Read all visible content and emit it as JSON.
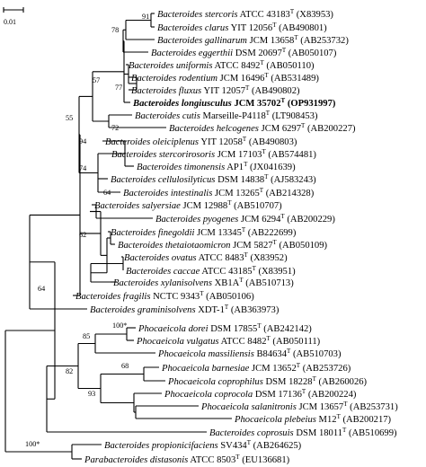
{
  "scale_bar": {
    "label": "0.01"
  },
  "taxa": [
    {
      "id": "t1",
      "genus": "Bacteroides",
      "species": "stercoris",
      "strain": "ATCC 43183",
      "acc": "(X83953)"
    },
    {
      "id": "t2",
      "genus": "Bacteroides",
      "species": "clarus",
      "strain": "YIT 12056",
      "acc": "(AB490801)"
    },
    {
      "id": "t3",
      "genus": "Bacteroides",
      "species": "gallinarum",
      "strain": "JCM 13658",
      "acc": "(AB253732)"
    },
    {
      "id": "t4",
      "genus": "Bacteroides",
      "species": "eggerthii",
      "strain": "DSM 20697",
      "acc": "(AB050107)"
    },
    {
      "id": "t5",
      "genus": "Bacteroides",
      "species": "uniformis",
      "strain": "ATCC 8492",
      "acc": "(AB050110)"
    },
    {
      "id": "t6",
      "genus": "Bacteroides",
      "species": "rodentium",
      "strain": "JCM 16496",
      "acc": "(AB531489)"
    },
    {
      "id": "t7",
      "genus": "Bacteroides",
      "species": "fluxus",
      "strain": "YIT 12057",
      "acc": "(AB490802)"
    },
    {
      "id": "t8",
      "genus": "Bacteroides",
      "species": "longiusculus",
      "strain": "JCM 35702",
      "acc": "(OP931997)",
      "bold": true
    },
    {
      "id": "t9",
      "genus": "Bacteroides",
      "species": "cutis",
      "strain": "Marseille-P4118",
      "acc": "(LT908453)"
    },
    {
      "id": "t10",
      "genus": "Bacteroides",
      "species": "helcogenes",
      "strain": "JCM 6297",
      "acc": "(AB200227)"
    },
    {
      "id": "t11",
      "genus": "Bacteroides",
      "species": "oleiciplenus",
      "strain": "YIT 12058",
      "acc": "(AB490803)"
    },
    {
      "id": "t12",
      "genus": "Bacteroides",
      "species": "stercorirosoris",
      "strain": "JCM 17103",
      "acc": "(AB574481)"
    },
    {
      "id": "t13",
      "genus": "Bacteroides",
      "species": "timonensis",
      "strain": "AP1",
      "acc": "(JX041639)"
    },
    {
      "id": "t14",
      "genus": "Bacteroides",
      "species": "cellulosilyticus",
      "strain": "DSM 14838",
      "acc": "(AJ583243)"
    },
    {
      "id": "t15",
      "genus": "Bacteroides",
      "species": "intestinalis",
      "strain": "JCM 13265",
      "acc": "(AB214328)"
    },
    {
      "id": "t16",
      "genus": "Bacteroides",
      "species": "salyersiae",
      "strain": "JCM 12988",
      "acc": "(AB510707)"
    },
    {
      "id": "t17",
      "genus": "Bacteroides",
      "species": "pyogenes",
      "strain": "JCM 6294",
      "acc": "(AB200229)"
    },
    {
      "id": "t18",
      "genus": "Bacteroides",
      "species": "finegoldii",
      "strain": "JCM 13345",
      "acc": "(AB222699)"
    },
    {
      "id": "t19",
      "genus": "Bacteroides",
      "species": "thetaiotaomicron",
      "strain": "JCM 5827",
      "acc": "(AB050109)"
    },
    {
      "id": "t20",
      "genus": "Bacteroides",
      "species": "ovatus",
      "strain": "ATCC 8483",
      "acc": "(X83952)"
    },
    {
      "id": "t21",
      "genus": "Bacteroides",
      "species": "caccae",
      "strain": "ATCC 43185",
      "acc": "(X83951)"
    },
    {
      "id": "t22",
      "genus": "Bacteroides",
      "species": "xylanisolvens",
      "strain": "XB1A",
      "acc": "(AB510713)"
    },
    {
      "id": "t23",
      "genus": "Bacteroides",
      "species": "fragilis",
      "strain": "NCTC 9343",
      "acc": "(AB050106)"
    },
    {
      "id": "t24",
      "genus": "Bacteroides",
      "species": "graminisolvens",
      "strain": "XDT-1",
      "acc": "(AB363973)"
    },
    {
      "id": "t25",
      "genus": "Phocaeicola",
      "species": "dorei",
      "strain": "DSM 17855",
      "acc": "(AB242142)"
    },
    {
      "id": "t26",
      "genus": "Phocaeicola",
      "species": "vulgatus",
      "strain": "ATCC 8482",
      "acc": "(AB050111)"
    },
    {
      "id": "t27",
      "genus": "Phocaeicola",
      "species": "massiliensis",
      "strain": "B84634",
      "acc": "(AB510703)"
    },
    {
      "id": "t28",
      "genus": "Phocaeicola",
      "species": "barnesiae",
      "strain": "JCM 13652",
      "acc": "(AB253726)"
    },
    {
      "id": "t29",
      "genus": "Phocaeicola",
      "species": "coprophilus",
      "strain": "DSM 18228",
      "acc": "(AB260026)"
    },
    {
      "id": "t30",
      "genus": "Phocaeicola",
      "species": "coprocola",
      "strain": "DSM 17136",
      "acc": "(AB200224)"
    },
    {
      "id": "t31",
      "genus": "Phocaeicola",
      "species": "salanitronis",
      "strain": "JCM 13657",
      "acc": "(AB253731)"
    },
    {
      "id": "t32",
      "genus": "Phocaeicola",
      "species": "plebeius",
      "strain": "M12",
      "acc": "(AB200217)"
    },
    {
      "id": "t33",
      "genus": "Bacteroides",
      "species": "coprosuis",
      "strain": "DSM 18011",
      "acc": "(AB510699)"
    },
    {
      "id": "t34",
      "genus": "Bacteroides",
      "species": "propionicifaciens",
      "strain": "SV434",
      "acc": "(AB264625)"
    },
    {
      "id": "t35",
      "genus": "Parabacteroides",
      "species": "distasonis",
      "strain": "ATCC 8503",
      "acc": "(EU136681)"
    }
  ],
  "type_strain_mark": "T",
  "bootstrap": [
    {
      "id": "b91",
      "value": "91"
    },
    {
      "id": "b78",
      "value": "78"
    },
    {
      "id": "b77",
      "value": "77"
    },
    {
      "id": "b57",
      "value": "57"
    },
    {
      "id": "b72",
      "value": "72"
    },
    {
      "id": "b55",
      "value": "55"
    },
    {
      "id": "b94",
      "value": "94"
    },
    {
      "id": "b74",
      "value": "74"
    },
    {
      "id": "b64a",
      "value": "64"
    },
    {
      "id": "b62",
      "value": "62"
    },
    {
      "id": "b64b",
      "value": "64"
    },
    {
      "id": "b100a",
      "value": "100*"
    },
    {
      "id": "b85",
      "value": "85"
    },
    {
      "id": "b68",
      "value": "68"
    },
    {
      "id": "b82",
      "value": "82"
    },
    {
      "id": "b93",
      "value": "93"
    },
    {
      "id": "b100b",
      "value": "100*"
    }
  ]
}
